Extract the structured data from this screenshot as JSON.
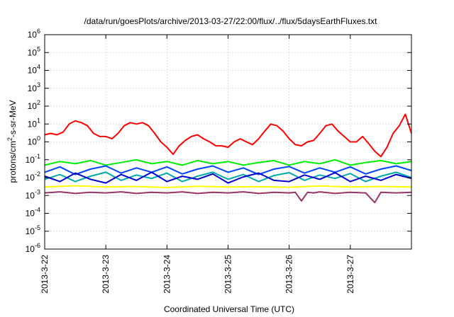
{
  "chart_data": {
    "type": "line",
    "title": "/data/run/goesPlots/archive/2013-03-27/22:00/flux/../flux/5daysEarthFluxes.txt",
    "xlabel": "Coordinated Universal Time (UTC)",
    "ylabel": {
      "base": "protons/cm",
      "sup": "2",
      "rest": "-s-sr-MeV"
    },
    "yscale": "log",
    "ylim": [
      1e-06,
      1000000.0
    ],
    "xlim": [
      "2013-3-22",
      "2013-3-28"
    ],
    "grid": true,
    "y_ticks": [
      {
        "exp": "-6",
        "value": 1e-06
      },
      {
        "exp": "-5",
        "value": 1e-05
      },
      {
        "exp": "-4",
        "value": 0.0001
      },
      {
        "exp": "-3",
        "value": 0.001
      },
      {
        "exp": "-2",
        "value": 0.01
      },
      {
        "exp": "-1",
        "value": 0.1
      },
      {
        "exp": "0",
        "value": 1
      },
      {
        "exp": "1",
        "value": 10
      },
      {
        "exp": "2",
        "value": 100
      },
      {
        "exp": "3",
        "value": 1000.0
      },
      {
        "exp": "4",
        "value": 10000.0
      },
      {
        "exp": "5",
        "value": 100000.0
      },
      {
        "exp": "6",
        "value": 1000000.0
      }
    ],
    "y_tick_base": "10",
    "x_ticks": [
      "2013-3-22",
      "2013-3-23",
      "2013-3-24",
      "2013-3-25",
      "2013-3-26",
      "2013-3-27"
    ],
    "series": [
      {
        "color": "#ff0000",
        "x": [
          0,
          0.1,
          0.2,
          0.3,
          0.4,
          0.5,
          0.6,
          0.7,
          0.8,
          0.9,
          1.0,
          1.1,
          1.2,
          1.3,
          1.4,
          1.5,
          1.6,
          1.7,
          1.8,
          1.9,
          2.0,
          2.1,
          2.2,
          2.3,
          2.4,
          2.5,
          2.6,
          2.7,
          2.8,
          2.9,
          3.0,
          3.1,
          3.2,
          3.3,
          3.4,
          3.5,
          3.6,
          3.7,
          3.8,
          3.9,
          4.0,
          4.1,
          4.2,
          4.3,
          4.4,
          4.5,
          4.6,
          4.7,
          4.8,
          4.9,
          5.0,
          5.1,
          5.2,
          5.3,
          5.4,
          5.5,
          5.6,
          5.7,
          5.8,
          5.9,
          6.0
        ],
        "y": [
          2.5,
          3,
          2.5,
          3.5,
          10,
          15,
          12,
          8,
          3,
          2,
          2,
          1.5,
          3,
          8,
          12,
          10,
          12,
          8,
          3,
          1,
          0.5,
          0.2,
          0.6,
          1.2,
          2,
          2.5,
          1.5,
          1,
          0.6,
          0.6,
          0.5,
          1,
          1.5,
          1,
          0.7,
          1.5,
          4,
          10,
          8,
          4,
          1.5,
          0.7,
          0.6,
          1,
          1.2,
          3,
          8,
          10,
          4,
          2,
          1,
          1,
          2,
          0.8,
          0.3,
          0.15,
          0.5,
          3,
          8,
          35,
          3
        ]
      },
      {
        "color": "#00ee00",
        "x": [
          0,
          0.25,
          0.5,
          0.75,
          1.0,
          1.25,
          1.5,
          1.75,
          2.0,
          2.25,
          2.5,
          2.75,
          3.0,
          3.25,
          3.5,
          3.75,
          4.0,
          4.25,
          4.5,
          4.75,
          5.0,
          5.25,
          5.5,
          5.75,
          6.0
        ],
        "y": [
          0.05,
          0.08,
          0.06,
          0.09,
          0.05,
          0.07,
          0.1,
          0.06,
          0.08,
          0.05,
          0.09,
          0.06,
          0.08,
          0.05,
          0.07,
          0.09,
          0.05,
          0.08,
          0.06,
          0.1,
          0.05,
          0.07,
          0.09,
          0.06,
          0.08
        ]
      },
      {
        "color": "#00aaaa",
        "x": [
          0,
          0.25,
          0.5,
          0.75,
          1.0,
          1.25,
          1.5,
          1.75,
          2.0,
          2.25,
          2.5,
          2.75,
          3.0,
          3.25,
          3.5,
          3.75,
          4.0,
          4.25,
          4.5,
          4.75,
          5.0,
          5.25,
          5.5,
          5.75,
          6.0
        ],
        "y": [
          0.008,
          0.015,
          0.006,
          0.012,
          0.02,
          0.007,
          0.014,
          0.009,
          0.018,
          0.006,
          0.012,
          0.02,
          0.008,
          0.015,
          0.006,
          0.013,
          0.019,
          0.007,
          0.014,
          0.009,
          0.017,
          0.006,
          0.012,
          0.02,
          0.01
        ]
      },
      {
        "color": "#0044ff",
        "x": [
          0,
          0.25,
          0.5,
          0.75,
          1.0,
          1.25,
          1.5,
          1.75,
          2.0,
          2.25,
          2.5,
          2.75,
          3.0,
          3.25,
          3.5,
          3.75,
          4.0,
          4.25,
          4.5,
          4.75,
          5.0,
          5.25,
          5.5,
          5.75,
          6.0
        ],
        "y": [
          0.02,
          0.04,
          0.015,
          0.03,
          0.045,
          0.018,
          0.035,
          0.02,
          0.04,
          0.016,
          0.03,
          0.045,
          0.02,
          0.035,
          0.015,
          0.03,
          0.042,
          0.018,
          0.035,
          0.02,
          0.04,
          0.016,
          0.03,
          0.045,
          0.025
        ]
      },
      {
        "color": "#0000cc",
        "x": [
          0,
          0.25,
          0.5,
          0.75,
          1.0,
          1.25,
          1.5,
          1.75,
          2.0,
          2.25,
          2.5,
          2.75,
          3.0,
          3.25,
          3.5,
          3.75,
          4.0,
          4.25,
          4.5,
          4.75,
          5.0,
          5.25,
          5.5,
          5.75,
          6.0
        ],
        "y": [
          0.012,
          0.006,
          0.018,
          0.008,
          0.005,
          0.015,
          0.007,
          0.02,
          0.006,
          0.012,
          0.008,
          0.016,
          0.005,
          0.011,
          0.018,
          0.007,
          0.006,
          0.014,
          0.008,
          0.019,
          0.006,
          0.012,
          0.007,
          0.015,
          0.009
        ]
      },
      {
        "color": "#ffff00",
        "x": [
          0,
          0.5,
          1.0,
          1.5,
          2.0,
          2.5,
          3.0,
          3.5,
          4.0,
          4.5,
          5.0,
          5.5,
          6.0
        ],
        "y": [
          0.003,
          0.0035,
          0.003,
          0.0032,
          0.0028,
          0.0033,
          0.003,
          0.0031,
          0.0029,
          0.0034,
          0.003,
          0.0032,
          0.003
        ]
      },
      {
        "color": "#993366",
        "x": [
          0,
          0.25,
          0.5,
          0.75,
          1.0,
          1.25,
          1.5,
          1.75,
          2.0,
          2.25,
          2.5,
          2.75,
          3.0,
          3.25,
          3.5,
          3.75,
          4.0,
          4.1,
          4.2,
          4.3,
          4.4,
          4.5,
          4.75,
          5.0,
          5.25,
          5.4,
          5.5,
          5.75,
          6.0
        ],
        "y": [
          0.0014,
          0.0016,
          0.0013,
          0.0015,
          0.0014,
          0.0016,
          0.0013,
          0.0015,
          0.0014,
          0.0016,
          0.0013,
          0.0015,
          0.0014,
          0.0016,
          0.0013,
          0.0015,
          0.0014,
          0.0015,
          0.0005,
          0.0015,
          0.0014,
          0.0016,
          0.0013,
          0.0015,
          0.0014,
          0.0004,
          0.0015,
          0.0014,
          0.0015
        ]
      }
    ]
  }
}
